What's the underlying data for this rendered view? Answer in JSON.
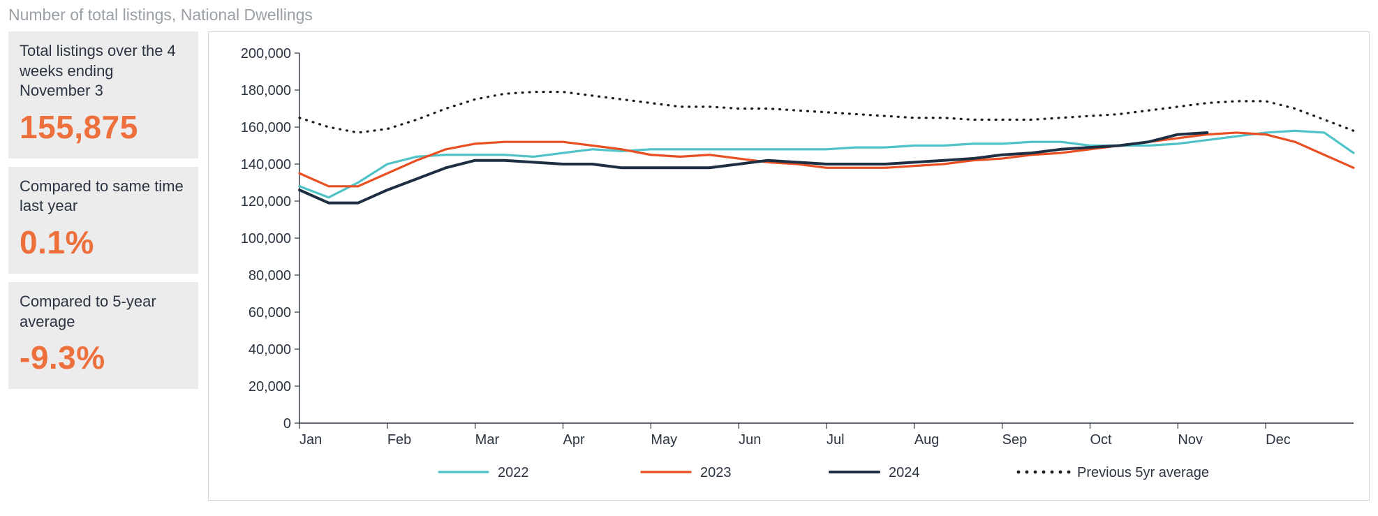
{
  "title": "Number of total listings, National Dwellings",
  "sidebar": {
    "cards": [
      {
        "label": "Total listings over the 4 weeks ending November 3",
        "value": "155,875"
      },
      {
        "label": "Compared to same time last year",
        "value": "0.1%"
      },
      {
        "label": "Compared to 5-year average",
        "value": "-9.3%"
      }
    ]
  },
  "chart": {
    "type": "line",
    "background_color": "#ffffff",
    "border_color": "#d4d6d9",
    "axis_color": "#2c3441",
    "tick_font_size": 20,
    "accent_color": "#ec6f3c",
    "y": {
      "min": 0,
      "max": 200000,
      "tick_step": 20000,
      "tick_format": "comma",
      "labels": [
        "0",
        "20,000",
        "40,000",
        "60,000",
        "80,000",
        "100,000",
        "120,000",
        "140,000",
        "160,000",
        "180,000",
        "200,000"
      ]
    },
    "x": {
      "categories": [
        "Jan",
        "Feb",
        "Mar",
        "Apr",
        "May",
        "Jun",
        "Jul",
        "Aug",
        "Sep",
        "Oct",
        "Nov",
        "Dec"
      ]
    },
    "series": [
      {
        "name": "2022",
        "color": "#4fc3c7",
        "line_width": 3.2,
        "dash": "none",
        "partial": false,
        "values": [
          128000,
          122000,
          130000,
          140000,
          144000,
          145000,
          145000,
          145000,
          144000,
          146000,
          148000,
          147000,
          148000,
          148000,
          148000,
          148000,
          148000,
          148000,
          148000,
          149000,
          149000,
          150000,
          150000,
          151000,
          151000,
          152000,
          152000,
          150000,
          150000,
          150000,
          151000,
          153000,
          155000,
          157000,
          158000,
          157000,
          146000
        ]
      },
      {
        "name": "2023",
        "color": "#e84f22",
        "line_width": 3.2,
        "dash": "none",
        "partial": false,
        "values": [
          135000,
          128000,
          128000,
          135000,
          142000,
          148000,
          151000,
          152000,
          152000,
          152000,
          150000,
          148000,
          145000,
          144000,
          145000,
          143000,
          141000,
          140000,
          138000,
          138000,
          138000,
          139000,
          140000,
          142000,
          143000,
          145000,
          146000,
          148000,
          150000,
          152000,
          154000,
          156000,
          157000,
          156000,
          152000,
          145000,
          138000
        ]
      },
      {
        "name": "2024",
        "color": "#1f2f43",
        "line_width": 4.0,
        "dash": "none",
        "partial": true,
        "values": [
          126000,
          119000,
          119000,
          126000,
          132000,
          138000,
          142000,
          142000,
          141000,
          140000,
          140000,
          138000,
          138000,
          138000,
          138000,
          140000,
          142000,
          141000,
          140000,
          140000,
          140000,
          141000,
          142000,
          143000,
          145000,
          146000,
          148000,
          149000,
          150000,
          152000,
          156000,
          157000
        ]
      },
      {
        "name": "Previous 5yr average",
        "color": "#1d1d1d",
        "line_width": 3.2,
        "dash": "dot",
        "partial": false,
        "values": [
          165000,
          160000,
          157000,
          159000,
          164000,
          170000,
          175000,
          178000,
          179000,
          179000,
          177000,
          175000,
          173000,
          171000,
          171000,
          170000,
          170000,
          169000,
          168000,
          167000,
          166000,
          165000,
          165000,
          164000,
          164000,
          164000,
          165000,
          166000,
          167000,
          169000,
          171000,
          173000,
          174000,
          174000,
          170000,
          164000,
          158000
        ]
      }
    ],
    "legend": {
      "items": [
        "2022",
        "2023",
        "2024",
        "Previous 5yr average"
      ]
    }
  }
}
